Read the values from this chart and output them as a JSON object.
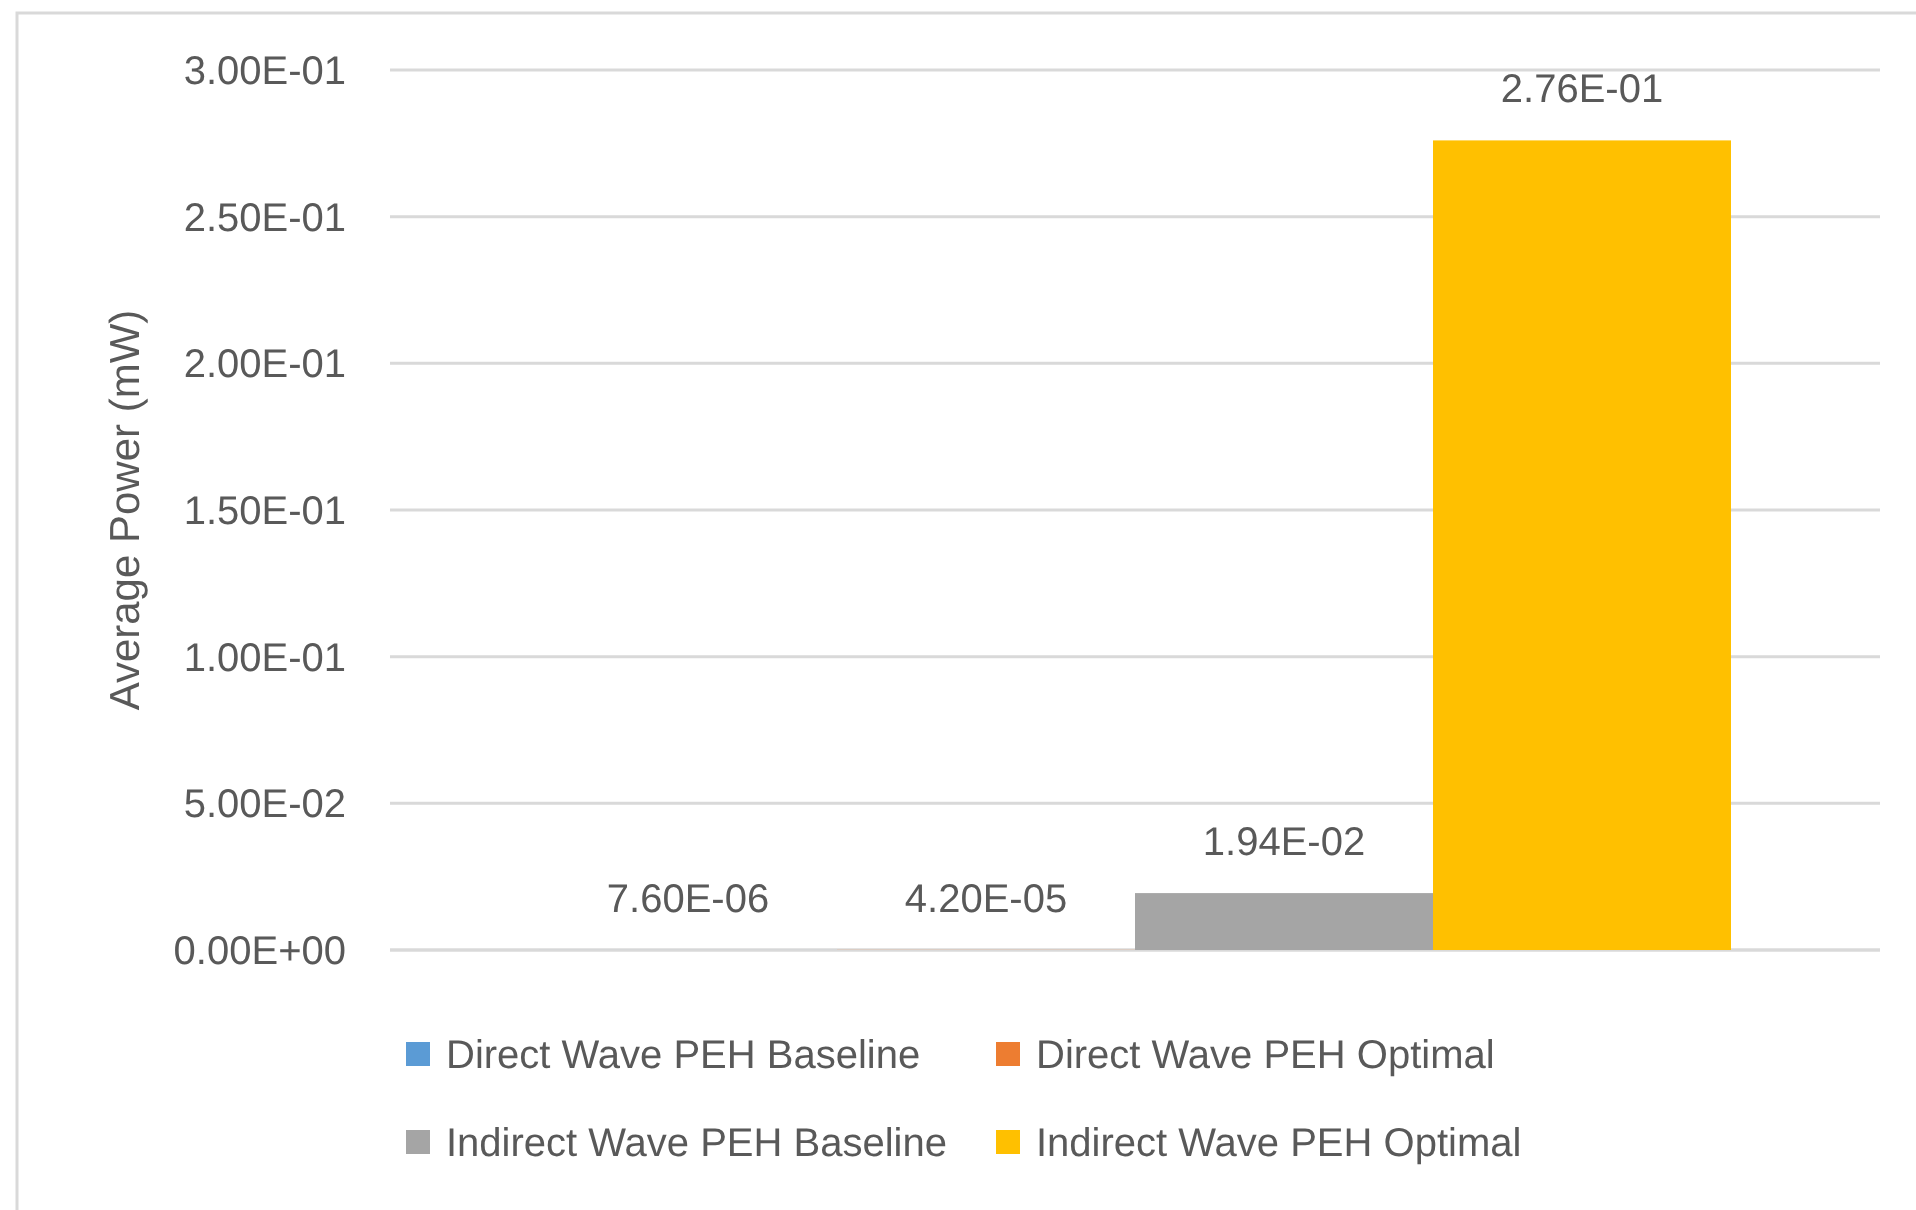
{
  "chart_data": {
    "type": "bar",
    "ylabel": "Average Power (mW)",
    "categories": [
      null
    ],
    "series": [
      {
        "name": "Direct Wave PEH Baseline",
        "color": "#5b9bd5",
        "values": [
          7.6e-06
        ],
        "value_labels": [
          "7.60E-06"
        ]
      },
      {
        "name": "Direct Wave PEH Optimal",
        "color": "#ed7d31",
        "values": [
          4.2e-05
        ],
        "value_labels": [
          "4.20E-05"
        ]
      },
      {
        "name": "Indirect Wave PEH Baseline",
        "color": "#a5a5a5",
        "values": [
          0.0194
        ],
        "value_labels": [
          "1.94E-02"
        ]
      },
      {
        "name": "Indirect Wave PEH Optimal",
        "color": "#ffc000",
        "values": [
          0.276
        ],
        "value_labels": [
          "2.76E-01"
        ]
      }
    ],
    "ylim": [
      0,
      0.3
    ],
    "yticks": [
      {
        "value": 0,
        "label": "0.00E+00"
      },
      {
        "value": 0.05,
        "label": "5.00E-02"
      },
      {
        "value": 0.1,
        "label": "1.00E-01"
      },
      {
        "value": 0.15,
        "label": "1.50E-01"
      },
      {
        "value": 0.2,
        "label": "2.00E-01"
      },
      {
        "value": 0.25,
        "label": "2.50E-01"
      },
      {
        "value": 0.3,
        "label": "3.00E-01"
      }
    ],
    "grid": "y",
    "legend": "bottom"
  }
}
